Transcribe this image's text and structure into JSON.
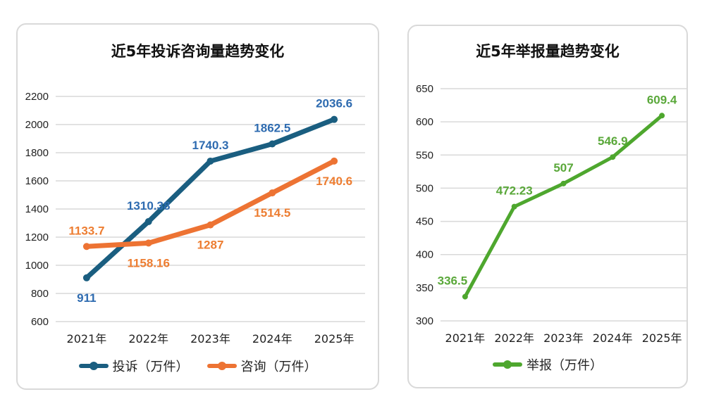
{
  "chart_data": [
    {
      "type": "line",
      "title": "近5年投诉咨询量趋势变化",
      "categories": [
        "2021年",
        "2022年",
        "2023年",
        "2024年",
        "2025年"
      ],
      "yticks": [
        600,
        800,
        1000,
        1200,
        1400,
        1600,
        1800,
        2000,
        2200
      ],
      "ylim": [
        600,
        2200
      ],
      "grid": true,
      "legend_position": "bottom",
      "series": [
        {
          "name": "投诉（万件）",
          "values": [
            911,
            1310.38,
            1740.3,
            1862.5,
            2036.6
          ],
          "labels": [
            "911",
            "1310.38",
            "1740.3",
            "1862.5",
            "2036.6"
          ],
          "color": "#1a5e80",
          "label_color": "#2e6bb0"
        },
        {
          "name": "咨询（万件）",
          "values": [
            1133.7,
            1158.16,
            1287,
            1514.5,
            1740.6
          ],
          "labels": [
            "1133.7",
            "1158.16",
            "1287",
            "1514.5",
            "1740.6"
          ],
          "color": "#ed7333",
          "label_color": "#ed7d31"
        }
      ]
    },
    {
      "type": "line",
      "title": "近5年举报量趋势变化",
      "categories": [
        "2021年",
        "2022年",
        "2023年",
        "2024年",
        "2025年"
      ],
      "yticks": [
        300,
        350,
        400,
        450,
        500,
        550,
        600,
        650
      ],
      "ylim": [
        300,
        650
      ],
      "grid": true,
      "legend_position": "bottom",
      "series": [
        {
          "name": "举报（万件）",
          "values": [
            336.5,
            472.23,
            507,
            546.9,
            609.4
          ],
          "labels": [
            "336.5",
            "472.23",
            "507",
            "546.9",
            "609.4"
          ],
          "color": "#4ea72e",
          "label_color": "#5aa83a"
        }
      ]
    }
  ]
}
